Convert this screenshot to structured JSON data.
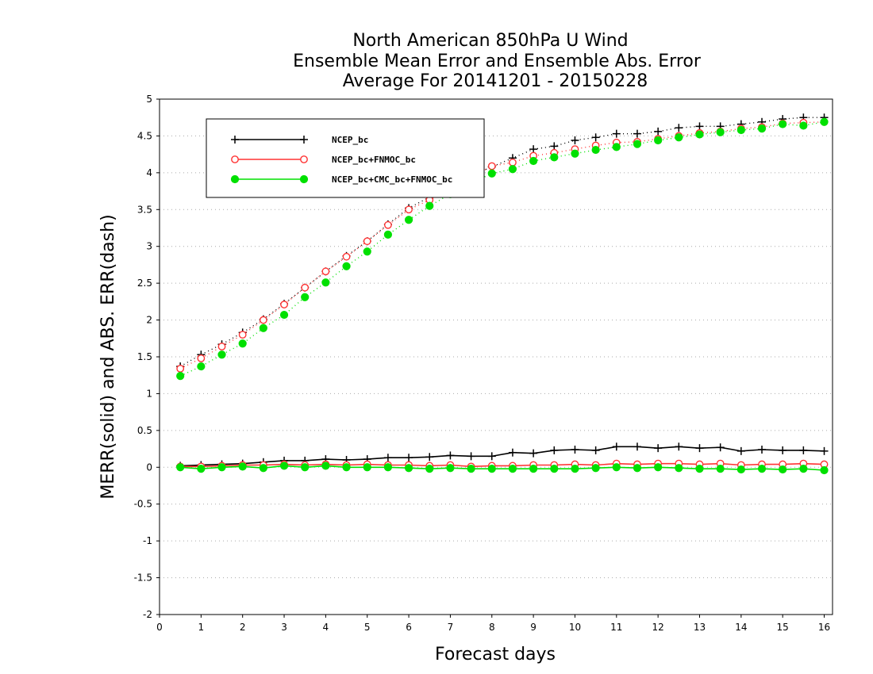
{
  "chart_data": {
    "type": "line",
    "title_lines": [
      "North American 850hPa U Wind",
      "Ensemble Mean Error and Ensemble Abs. Error",
      "Average For 20141201 - 20150228"
    ],
    "xlabel": "Forecast days",
    "ylabel": "MERR(solid) and ABS. ERR(dash)",
    "xlim": [
      0,
      16.2
    ],
    "ylim": [
      -2,
      5
    ],
    "xticks": [
      "0",
      "1",
      "2",
      "3",
      "4",
      "5",
      "6",
      "7",
      "8",
      "9",
      "10",
      "11",
      "12",
      "13",
      "14",
      "15",
      "16"
    ],
    "yticks": [
      "-2",
      "-1.5",
      "-1",
      "-0.5",
      "0",
      "0.5",
      "1",
      "1.5",
      "2",
      "2.5",
      "3",
      "3.5",
      "4",
      "4.5",
      "5"
    ],
    "grid": "horizontal dotted",
    "legend_position": "top-left",
    "x": [
      0.5,
      1,
      1.5,
      2,
      2.5,
      3,
      3.5,
      4,
      4.5,
      5,
      5.5,
      6,
      6.5,
      7,
      7.5,
      8,
      8.5,
      9,
      9.5,
      10,
      10.5,
      11,
      11.5,
      12,
      12.5,
      13,
      13.5,
      14,
      14.5,
      15,
      15.5,
      16
    ],
    "series": [
      {
        "name": "NCEP_bc",
        "color": "#000000",
        "marker": "plus",
        "merr": [
          0.02,
          0.03,
          0.04,
          0.05,
          0.07,
          0.09,
          0.09,
          0.11,
          0.1,
          0.11,
          0.13,
          0.13,
          0.14,
          0.16,
          0.15,
          0.15,
          0.2,
          0.19,
          0.23,
          0.24,
          0.23,
          0.28,
          0.28,
          0.26,
          0.28,
          0.26,
          0.27,
          0.22,
          0.24,
          0.23,
          0.23,
          0.22
        ],
        "abs_err": [
          1.37,
          1.53,
          1.67,
          1.83,
          2.01,
          2.22,
          2.44,
          2.66,
          2.87,
          3.07,
          3.3,
          3.52,
          3.67,
          3.82,
          3.96,
          4.08,
          4.2,
          4.32,
          4.36,
          4.44,
          4.48,
          4.53,
          4.53,
          4.56,
          4.61,
          4.63,
          4.63,
          4.66,
          4.69,
          4.73,
          4.75,
          4.75
        ]
      },
      {
        "name": "NCEP_bc+FNMOC_bc",
        "color": "#ff3333",
        "marker": "open-circle",
        "merr": [
          0.01,
          0.01,
          0.02,
          0.03,
          0.03,
          0.04,
          0.03,
          0.04,
          0.03,
          0.04,
          0.03,
          0.03,
          0.02,
          0.03,
          0.01,
          0.02,
          0.02,
          0.03,
          0.03,
          0.04,
          0.03,
          0.05,
          0.04,
          0.05,
          0.05,
          0.04,
          0.05,
          0.03,
          0.04,
          0.04,
          0.05,
          0.04
        ],
        "abs_err": [
          1.34,
          1.48,
          1.64,
          1.8,
          2.0,
          2.21,
          2.44,
          2.66,
          2.86,
          3.07,
          3.29,
          3.5,
          3.63,
          3.79,
          3.94,
          4.09,
          4.14,
          4.23,
          4.27,
          4.32,
          4.37,
          4.41,
          4.42,
          4.46,
          4.5,
          4.54,
          4.56,
          4.6,
          4.62,
          4.67,
          4.68,
          4.69
        ]
      },
      {
        "name": "NCEP_bc+CMC_bc+FNMOC_bc",
        "color": "#00e000",
        "marker": "filled-circle",
        "merr": [
          0.0,
          -0.02,
          0.0,
          0.01,
          -0.01,
          0.02,
          0.0,
          0.02,
          0.0,
          0.0,
          0.0,
          -0.01,
          -0.02,
          -0.01,
          -0.02,
          -0.02,
          -0.02,
          -0.02,
          -0.02,
          -0.02,
          -0.01,
          0.0,
          -0.01,
          0.0,
          -0.01,
          -0.02,
          -0.02,
          -0.03,
          -0.02,
          -0.03,
          -0.02,
          -0.04
        ],
        "abs_err": [
          1.24,
          1.37,
          1.53,
          1.68,
          1.89,
          2.07,
          2.31,
          2.51,
          2.73,
          2.93,
          3.16,
          3.36,
          3.55,
          3.71,
          3.86,
          3.99,
          4.05,
          4.16,
          4.21,
          4.26,
          4.31,
          4.35,
          4.39,
          4.44,
          4.48,
          4.52,
          4.55,
          4.58,
          4.6,
          4.66,
          4.64,
          4.69
        ]
      }
    ]
  }
}
